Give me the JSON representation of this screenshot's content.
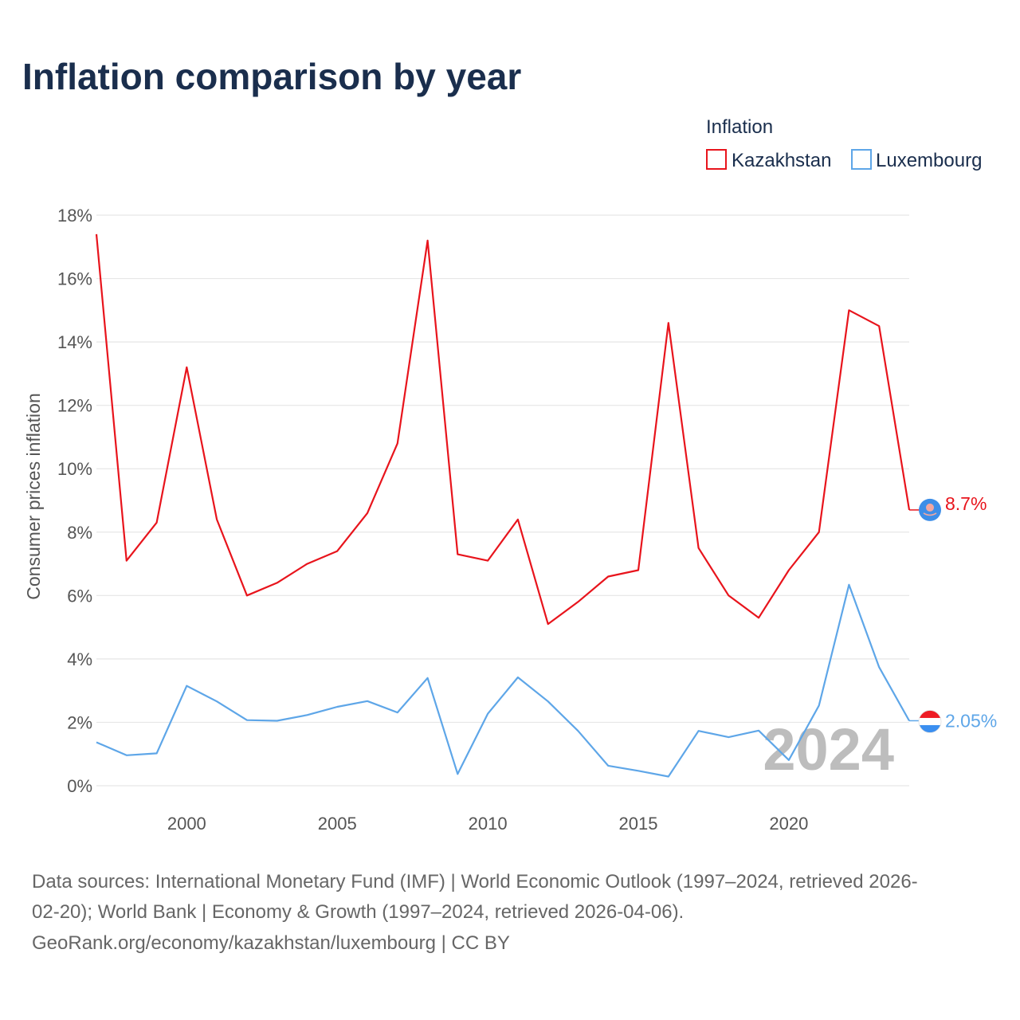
{
  "title": "Inflation comparison by year",
  "legend": {
    "title": "Inflation",
    "items": [
      {
        "label": "Kazakhstan",
        "color": "#e8141c"
      },
      {
        "label": "Luxembourg",
        "color": "#5ea6e8"
      }
    ]
  },
  "chart_data": {
    "type": "line",
    "title": "Inflation comparison by year",
    "xlabel": "",
    "ylabel": "Consumer prices inflation",
    "x": [
      1997,
      1998,
      1999,
      2000,
      2001,
      2002,
      2003,
      2004,
      2005,
      2006,
      2007,
      2008,
      2009,
      2010,
      2011,
      2012,
      2013,
      2014,
      2015,
      2016,
      2017,
      2018,
      2019,
      2020,
      2021,
      2022,
      2023,
      2024
    ],
    "xlim": [
      1997,
      2024
    ],
    "ylim": [
      0,
      18
    ],
    "x_ticks": [
      2000,
      2005,
      2010,
      2015,
      2020
    ],
    "y_ticks": [
      0,
      2,
      4,
      6,
      8,
      10,
      12,
      14,
      16,
      18
    ],
    "y_tick_labels": [
      "0%",
      "2%",
      "4%",
      "6%",
      "8%",
      "10%",
      "12%",
      "14%",
      "16%",
      "18%"
    ],
    "grid": true,
    "legend_position": "top-right",
    "series": [
      {
        "name": "Kazakhstan",
        "color": "#e8141c",
        "values": [
          17.4,
          7.1,
          8.3,
          13.2,
          8.4,
          6.0,
          6.4,
          7.0,
          7.4,
          8.6,
          10.8,
          17.2,
          7.3,
          7.1,
          8.4,
          5.1,
          5.8,
          6.6,
          6.8,
          14.6,
          7.5,
          6.0,
          5.3,
          6.8,
          8.0,
          15.0,
          14.5,
          8.7
        ],
        "end_label": "8.7%"
      },
      {
        "name": "Luxembourg",
        "color": "#5ea6e8",
        "values": [
          1.37,
          0.96,
          1.02,
          3.15,
          2.66,
          2.07,
          2.05,
          2.23,
          2.49,
          2.67,
          2.31,
          3.4,
          0.37,
          2.27,
          3.42,
          2.66,
          1.73,
          0.63,
          0.47,
          0.29,
          1.73,
          1.53,
          1.74,
          0.81,
          2.53,
          6.34,
          3.74,
          2.05
        ],
        "end_label": "2.05%"
      }
    ],
    "annotation": "2024"
  },
  "source_lines": [
    "Data sources: International Monetary Fund (IMF) | World Economic Outlook (1997–2024, retrieved 2026-",
    "02-20); World Bank | Economy & Growth (1997–2024, retrieved 2026-04-06).",
    "GeoRank.org/economy/kazakhstan/luxembourg | CC BY"
  ]
}
